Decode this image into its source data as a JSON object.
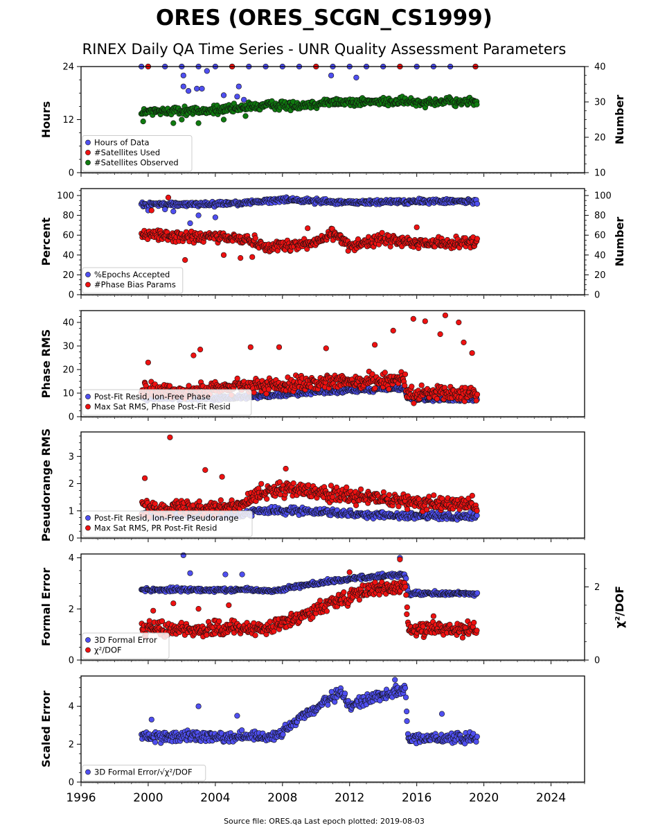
{
  "figure": {
    "title": "ORES (ORES_SCGN_CS1999)",
    "subtitle": "RINEX Daily QA Time Series - UNR Quality Assessment Parameters",
    "footer": "Source file: ORES.qa Last epoch plotted: 2019-08-03"
  },
  "colors": {
    "blue": "#4f4ff0",
    "red": "#ee1111",
    "green": "#0f7a0f"
  },
  "chart_data": [
    {
      "type": "scatter",
      "name": "hours",
      "ylabel": "Hours",
      "ylabel_right": "Number",
      "ylim": [
        0,
        24
      ],
      "ylim_right": [
        10,
        40
      ],
      "yticks": [
        0,
        12,
        24
      ],
      "yticks_right": [
        10,
        20,
        30,
        40
      ],
      "legend_position": "lower-left",
      "legend": [
        "Hours of Data",
        "#Satellites Used",
        "#Satellites Observed"
      ],
      "series": [
        {
          "name": "Hours of Data",
          "color": "blue",
          "axis": "left",
          "description": "nearly constant at 24",
          "points": [
            [
              1999.6,
              24
            ],
            [
              2000,
              24
            ],
            [
              2001,
              24
            ],
            [
              2002,
              24
            ],
            [
              2003,
              24
            ],
            [
              2004,
              24
            ],
            [
              2005,
              24
            ],
            [
              2006,
              24
            ],
            [
              2007,
              24
            ],
            [
              2008,
              24
            ],
            [
              2009,
              24
            ],
            [
              2010,
              24
            ],
            [
              2011,
              24
            ],
            [
              2012,
              24
            ],
            [
              2013,
              24
            ],
            [
              2014,
              24
            ],
            [
              2015,
              24
            ],
            [
              2016,
              24
            ],
            [
              2017,
              24
            ],
            [
              2018,
              24
            ],
            [
              2019.5,
              24
            ],
            [
              2002.1,
              22
            ],
            [
              2002.1,
              19.5
            ],
            [
              2002.4,
              18.5
            ],
            [
              2002.9,
              19
            ],
            [
              2003.2,
              19
            ],
            [
              2004.5,
              17.5
            ],
            [
              2005.4,
              19.5
            ],
            [
              2005.3,
              17.2
            ],
            [
              2005.7,
              16.5
            ],
            [
              2010.9,
              22
            ],
            [
              2012.4,
              21.5
            ],
            [
              2003.5,
              23
            ]
          ]
        },
        {
          "name": "#Satellites Used",
          "color": "red",
          "axis": "right",
          "description": "hidden behind Hours of Data at top",
          "points": [
            [
              2000,
              40
            ],
            [
              2005,
              40
            ],
            [
              2010,
              40
            ],
            [
              2015,
              40
            ],
            [
              2019.5,
              40
            ]
          ]
        },
        {
          "name": "#Satellites Observed",
          "color": "green",
          "axis": "right",
          "trend": [
            [
              1999.6,
              27
            ],
            [
              2001,
              27.5
            ],
            [
              2003,
              27.5
            ],
            [
              2005,
              28
            ],
            [
              2007,
              29
            ],
            [
              2009,
              29
            ],
            [
              2011,
              30
            ],
            [
              2013,
              30
            ],
            [
              2015,
              30
            ],
            [
              2017,
              30
            ],
            [
              2019.5,
              30
            ]
          ],
          "spread": 1.5,
          "outliers": [
            [
              1999.7,
              24.5
            ],
            [
              2001.5,
              24
            ],
            [
              2002,
              25
            ],
            [
              2003,
              24
            ],
            [
              2004.5,
              25
            ],
            [
              2005.8,
              26
            ]
          ]
        }
      ]
    },
    {
      "type": "scatter",
      "name": "percent",
      "ylabel": "Percent",
      "ylabel_right": "Number",
      "ylim": [
        0,
        107
      ],
      "yticks": [
        0,
        20,
        40,
        60,
        80,
        100
      ],
      "yticks_right": [
        0,
        20,
        40,
        60,
        80,
        100
      ],
      "legend_position": "lower-left",
      "legend": [
        "%Epochs Accepted",
        "#Phase Bias Params"
      ],
      "series": [
        {
          "name": "%Epochs Accepted",
          "color": "blue",
          "trend": [
            [
              1999.6,
              91
            ],
            [
              2003,
              91
            ],
            [
              2006,
              93
            ],
            [
              2008,
              96
            ],
            [
              2012,
              93
            ],
            [
              2016,
              94
            ],
            [
              2019.5,
              94
            ]
          ],
          "spread": 3,
          "outliers": [
            [
              2000,
              85
            ],
            [
              2001,
              86
            ],
            [
              2001.5,
              84
            ],
            [
              2002.5,
              72
            ],
            [
              2003,
              80
            ],
            [
              2004,
              78
            ]
          ]
        },
        {
          "name": "#Phase Bias Params",
          "color": "red",
          "trend": [
            [
              1999.6,
              62
            ],
            [
              2002,
              58
            ],
            [
              2004,
              58
            ],
            [
              2006,
              56
            ],
            [
              2007,
              48
            ],
            [
              2008.5,
              50
            ],
            [
              2010,
              52
            ],
            [
              2011,
              62
            ],
            [
              2012,
              50
            ],
            [
              2014,
              56
            ],
            [
              2016,
              52
            ],
            [
              2019.5,
              52
            ]
          ],
          "spread": 7,
          "outliers": [
            [
              2000.2,
              85
            ],
            [
              2001.2,
              98
            ],
            [
              2002.2,
              35
            ],
            [
              2004.5,
              40
            ],
            [
              2005.5,
              37
            ],
            [
              2006.2,
              38
            ],
            [
              2009.5,
              67
            ],
            [
              2016,
              68
            ]
          ]
        }
      ]
    },
    {
      "type": "scatter",
      "name": "phase",
      "ylabel": "Phase RMS",
      "ylim": [
        0,
        45
      ],
      "yticks": [
        0,
        10,
        20,
        30,
        40
      ],
      "legend_position": "lower-left",
      "legend": [
        "Post-Fit Resid, Ion-Free Phase",
        "Max Sat RMS, Phase Post-Fit Resid"
      ],
      "series": [
        {
          "name": "Post-Fit Resid, Ion-Free Phase",
          "color": "blue",
          "trend": [
            [
              1999.6,
              8
            ],
            [
              2005,
              8
            ],
            [
              2009,
              10
            ],
            [
              2013,
              11.5
            ],
            [
              2015.3,
              12
            ],
            [
              2015.4,
              7.5
            ],
            [
              2019.5,
              7.5
            ]
          ],
          "spread": 1.2
        },
        {
          "name": "Max Sat RMS, Phase Post-Fit Resid",
          "color": "red",
          "trend": [
            [
              1999.6,
              11
            ],
            [
              2003,
              11
            ],
            [
              2006,
              13
            ],
            [
              2009,
              14
            ],
            [
              2012,
              15
            ],
            [
              2015.3,
              16
            ],
            [
              2015.4,
              9.5
            ],
            [
              2019.5,
              10
            ]
          ],
          "spread": 4,
          "outliers": [
            [
              2000,
              23
            ],
            [
              2002.7,
              26
            ],
            [
              2003.1,
              28.5
            ],
            [
              2006.1,
              29.5
            ],
            [
              2007.8,
              29.5
            ],
            [
              2010.6,
              29
            ],
            [
              2013.5,
              30.5
            ],
            [
              2014.6,
              36.5
            ],
            [
              2015.8,
              41.5
            ],
            [
              2016.5,
              40.5
            ],
            [
              2017.4,
              35
            ],
            [
              2017.7,
              43
            ],
            [
              2018.5,
              40
            ],
            [
              2018.8,
              31.5
            ],
            [
              2019.3,
              27
            ]
          ]
        }
      ]
    },
    {
      "type": "scatter",
      "name": "pseudorange",
      "ylabel": "Pseudorange RMS",
      "ylim": [
        0,
        3.9
      ],
      "yticks": [
        0,
        1,
        2,
        3
      ],
      "legend_position": "lower-left",
      "legend": [
        "Post-Fit Resid, Ion-Free Pseudorange",
        "Max Sat RMS, PR Post-Fit Resid"
      ],
      "series": [
        {
          "name": "Post-Fit Resid, Ion-Free Pseudorange",
          "color": "blue",
          "trend": [
            [
              1999.6,
              0.85
            ],
            [
              2005.5,
              0.85
            ],
            [
              2006.5,
              1.0
            ],
            [
              2010,
              1.0
            ],
            [
              2013,
              0.85
            ],
            [
              2016,
              0.8
            ],
            [
              2019.5,
              0.8
            ]
          ],
          "spread": 0.15
        },
        {
          "name": "Max Sat RMS, PR Post-Fit Resid",
          "color": "red",
          "trend": [
            [
              1999.6,
              1.1
            ],
            [
              2005.5,
              1.15
            ],
            [
              2006.5,
              1.7
            ],
            [
              2008,
              1.8
            ],
            [
              2011,
              1.6
            ],
            [
              2014,
              1.4
            ],
            [
              2016,
              1.3
            ],
            [
              2019.5,
              1.2
            ]
          ],
          "spread": 0.35,
          "outliers": [
            [
              1999.8,
              2.2
            ],
            [
              2001.3,
              3.7
            ],
            [
              2003.4,
              2.5
            ],
            [
              2004.4,
              2.25
            ],
            [
              2008.2,
              2.55
            ]
          ]
        }
      ]
    },
    {
      "type": "scatter",
      "name": "formal",
      "ylabel": "Formal Error",
      "ylabel_right": "χ²/DOF",
      "ylim": [
        0,
        4.15
      ],
      "ylim_right": [
        0,
        2.9
      ],
      "yticks": [
        0,
        2,
        4
      ],
      "yticks_right": [
        0,
        2
      ],
      "legend_position": "lower-left",
      "legend": [
        "3D Formal Error",
        "χ²/DOF"
      ],
      "series": [
        {
          "name": "3D Formal Error",
          "color": "blue",
          "trend": [
            [
              1999.6,
              2.75
            ],
            [
              2006,
              2.75
            ],
            [
              2007.5,
              2.7
            ],
            [
              2009,
              2.9
            ],
            [
              2011,
              3.1
            ],
            [
              2013,
              3.25
            ],
            [
              2015.3,
              3.35
            ],
            [
              2015.5,
              2.6
            ],
            [
              2019.5,
              2.6
            ]
          ],
          "spread": 0.1,
          "outliers": [
            [
              2002.1,
              4.1
            ],
            [
              2002.5,
              3.4
            ],
            [
              2004.6,
              3.35
            ],
            [
              2005.6,
              3.35
            ],
            [
              2015,
              4.0
            ]
          ]
        },
        {
          "name": "χ²/DOF",
          "color": "red",
          "axis": "right",
          "trend": [
            [
              1999.6,
              0.85
            ],
            [
              2007,
              0.85
            ],
            [
              2008,
              1.0
            ],
            [
              2009.5,
              1.3
            ],
            [
              2011,
              1.6
            ],
            [
              2013,
              1.9
            ],
            [
              2015.3,
              2.0
            ],
            [
              2015.5,
              0.85
            ],
            [
              2019.5,
              0.85
            ]
          ],
          "spread": 0.25,
          "outliers": [
            [
              2000.3,
              1.35
            ],
            [
              2001.5,
              1.55
            ],
            [
              2003,
              1.4
            ],
            [
              2004.8,
              1.5
            ],
            [
              2012,
              2.4
            ],
            [
              2015,
              2.75
            ],
            [
              2017,
              1.2
            ]
          ]
        }
      ]
    },
    {
      "type": "scatter",
      "name": "scaled",
      "ylabel": "Scaled Error",
      "ylim": [
        0,
        5.6
      ],
      "yticks": [
        0,
        2,
        4
      ],
      "legend_position": "lower-left",
      "legend": [
        "3D Formal Error/√χ²/DOF"
      ],
      "series": [
        {
          "name": "3D Formal Error/√χ²/DOF",
          "color": "blue",
          "trend": [
            [
              1999.6,
              2.4
            ],
            [
              2007,
              2.4
            ],
            [
              2008,
              2.6
            ],
            [
              2009,
              3.3
            ],
            [
              2010.5,
              4.2
            ],
            [
              2011.5,
              4.7
            ],
            [
              2012,
              4.0
            ],
            [
              2013,
              4.4
            ],
            [
              2015.3,
              4.9
            ],
            [
              2015.5,
              2.3
            ],
            [
              2019.5,
              2.3
            ]
          ],
          "spread": 0.35,
          "outliers": [
            [
              2000.2,
              3.3
            ],
            [
              2003,
              4.0
            ],
            [
              2005.3,
              3.5
            ],
            [
              2014.7,
              5.4
            ],
            [
              2017.5,
              3.6
            ]
          ]
        }
      ]
    }
  ],
  "xaxis": {
    "xlim": [
      1996,
      2026
    ],
    "ticks": [
      "1996",
      "2000",
      "2004",
      "2008",
      "2012",
      "2016",
      "2020",
      "2024"
    ],
    "data_range": [
      1999.6,
      2019.59
    ]
  }
}
